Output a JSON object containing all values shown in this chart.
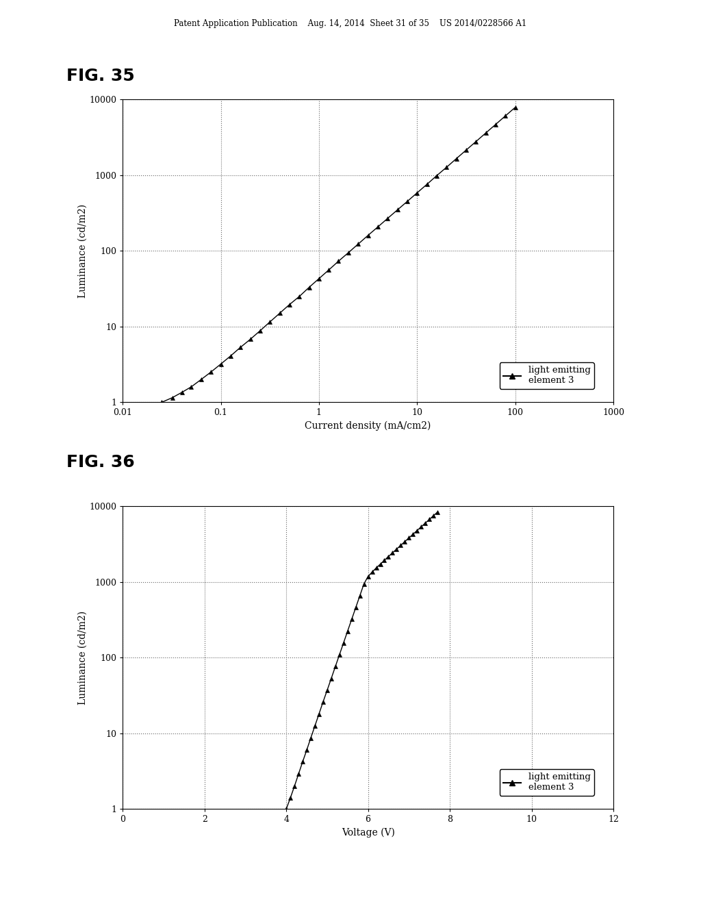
{
  "header_text": "Patent Application Publication    Aug. 14, 2014  Sheet 31 of 35    US 2014/0228566 A1",
  "fig35_title": "FIG. 35",
  "fig36_title": "FIG. 36",
  "legend_label": "light emitting\nelement 3",
  "fig35": {
    "xlabel": "Current density (mA/cm2)",
    "ylabel": "Luminance (cd/m2)",
    "xticks": [
      0.01,
      0.1,
      1,
      10,
      100,
      1000
    ],
    "xtick_labels": [
      "0.01",
      "0.1",
      "1",
      "10",
      "100",
      "1000"
    ],
    "yticks": [
      1,
      10,
      100,
      1000,
      10000
    ],
    "ytick_labels": [
      "1",
      "10",
      "100",
      "1000",
      "10000"
    ],
    "data_x": [
      0.025,
      0.032,
      0.04,
      0.05,
      0.063,
      0.079,
      0.1,
      0.126,
      0.158,
      0.2,
      0.251,
      0.316,
      0.398,
      0.5,
      0.631,
      0.794,
      1.0,
      1.26,
      1.58,
      2.0,
      2.51,
      3.16,
      3.98,
      5.0,
      6.31,
      7.94,
      10.0,
      12.6,
      15.8,
      20.0,
      25.1,
      31.6,
      39.8,
      50.1,
      63.1,
      79.4,
      100,
      126,
      158,
      200,
      251,
      316,
      398,
      500,
      631
    ],
    "data_y": [
      1.0,
      1.15,
      1.35,
      1.6,
      2.0,
      2.5,
      3.2,
      4.1,
      5.3,
      6.8,
      8.8,
      11.5,
      15,
      19.5,
      25,
      33,
      43,
      56,
      73,
      95,
      123,
      160,
      207,
      268,
      348,
      450,
      584,
      757,
      982,
      1274,
      1652,
      2143,
      2779,
      3605,
      4676,
      6065,
      7868,
      9000,
      9000,
      9000,
      9000,
      9000,
      9000,
      9000,
      9000
    ]
  },
  "fig36": {
    "xlabel": "Voltage (V)",
    "ylabel": "Luminance (cd/m2)",
    "xlim": [
      0,
      12
    ],
    "xticks": [
      0,
      2,
      4,
      6,
      8,
      10,
      12
    ],
    "xtick_labels": [
      "0",
      "2",
      "4",
      "6",
      "8",
      "10",
      "12"
    ],
    "yticks": [
      1,
      10,
      100,
      1000,
      10000
    ],
    "ytick_labels": [
      "1",
      "10",
      "100",
      "1000",
      "10000"
    ],
    "data_x": [
      4.0,
      4.1,
      4.2,
      4.3,
      4.4,
      4.5,
      4.6,
      4.7,
      4.8,
      4.9,
      5.0,
      5.1,
      5.2,
      5.3,
      5.4,
      5.5,
      5.6,
      5.7,
      5.8,
      5.9,
      6.0,
      6.1,
      6.2,
      6.3,
      6.4,
      6.5,
      6.6,
      6.7,
      6.8,
      6.9,
      7.0,
      7.1,
      7.2,
      7.3,
      7.4,
      7.5,
      7.6,
      7.7,
      7.8,
      7.9,
      8.0,
      8.1,
      8.2,
      8.3,
      8.4,
      8.5,
      8.6,
      8.7,
      8.8,
      8.9,
      9.0,
      9.1,
      9.2,
      9.3,
      9.4,
      9.5,
      9.6,
      9.7,
      9.8,
      9.9,
      10.0,
      10.1,
      10.2,
      10.3,
      10.4,
      10.5,
      10.6,
      10.7,
      10.8,
      10.9,
      11.0
    ],
    "data_y": [
      1.0,
      1.4,
      2.0,
      2.9,
      4.2,
      6.0,
      8.7,
      12.5,
      18,
      26,
      37,
      53,
      76,
      109,
      156,
      224,
      320,
      459,
      658,
      943,
      1180,
      1350,
      1530,
      1720,
      1930,
      2170,
      2430,
      2720,
      3050,
      3410,
      3820,
      4270,
      4780,
      5350,
      5990,
      6700,
      7500,
      8390,
      9000,
      9000,
      9000,
      9000,
      9000,
      9000,
      9000,
      9000,
      9000,
      9000,
      9000,
      9000,
      9000,
      9000,
      9000,
      9000,
      9000,
      9000,
      9000,
      9000,
      9000,
      9000,
      9000,
      9000,
      9000,
      9000,
      9000,
      9000,
      9000,
      9000,
      9000,
      9000,
      9000
    ]
  },
  "background_color": "#ffffff",
  "line_color": "#000000",
  "marker": "^",
  "marker_size": 4,
  "grid_color": "#666666",
  "grid_style": ":"
}
